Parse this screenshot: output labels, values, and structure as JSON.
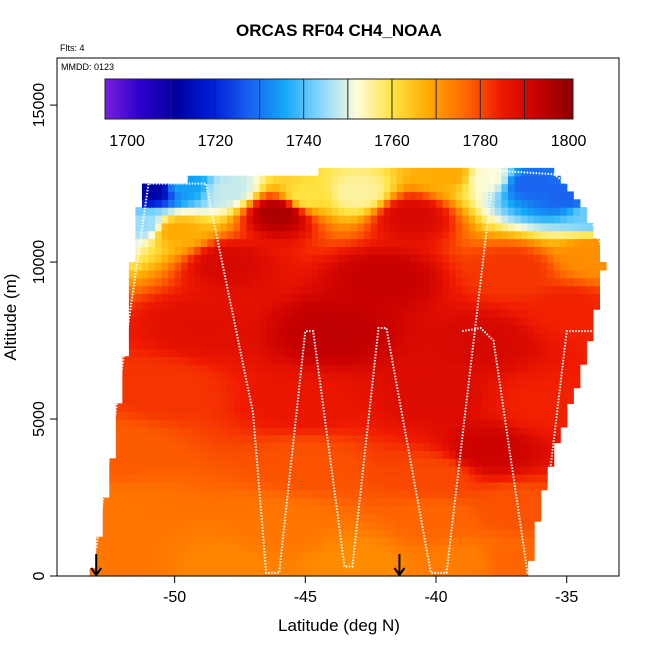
{
  "chart_data": {
    "type": "heatmap",
    "title": "ORCAS RF04 CH4_NOAA",
    "flights_label": "Flts: 4",
    "mmdd_label": "MMDD: 0123",
    "xlabel": "Latitude (deg N)",
    "ylabel": "Altitude (m)",
    "xlim": [
      -54.5,
      -33.0
    ],
    "ylim": [
      0,
      16500
    ],
    "x_ticks": [
      -50,
      -45,
      -40,
      -35
    ],
    "y_ticks": [
      0,
      5000,
      10000,
      15000
    ],
    "colorbar": {
      "range": [
        1695,
        1801
      ],
      "ticks": [
        1700,
        1720,
        1740,
        1760,
        1780,
        1800
      ],
      "colors": [
        "#7a20e0",
        "#2a00c8",
        "#0000a0",
        "#0020d8",
        "#1a60f0",
        "#12a8f8",
        "#8ad8ff",
        "#fefcd8",
        "#ffe240",
        "#ffa800",
        "#ff6a00",
        "#f01a00",
        "#c80000",
        "#8a0000"
      ]
    },
    "coverage": {
      "south_edge": [
        [
          0,
          -53.2
        ],
        [
          1500,
          -52.8
        ],
        [
          3000,
          -52.5
        ],
        [
          5000,
          -52.2
        ],
        [
          8000,
          -51.7
        ],
        [
          10500,
          -51.6
        ],
        [
          12500,
          -51.2
        ]
      ],
      "north_edge": [
        [
          0,
          -36.5
        ],
        [
          1500,
          -36.2
        ],
        [
          4000,
          -35.5
        ],
        [
          6000,
          -34.6
        ],
        [
          8000,
          -34.0
        ],
        [
          10000,
          -33.6
        ],
        [
          11500,
          -34.2
        ],
        [
          13000,
          -35.5
        ]
      ],
      "top_edge": [
        [
          -51.2,
          12500
        ],
        [
          -47,
          12800
        ],
        [
          -42,
          12950
        ],
        [
          -39,
          13100
        ],
        [
          -37,
          13100
        ],
        [
          -35.5,
          13000
        ]
      ]
    },
    "field_points": [
      {
        "lat": -51.0,
        "alt": 12300,
        "ch4": 1712
      },
      {
        "lat": -49.5,
        "alt": 12450,
        "ch4": 1735
      },
      {
        "lat": -48.0,
        "alt": 12300,
        "ch4": 1748
      },
      {
        "lat": -51.2,
        "alt": 11200,
        "ch4": 1745
      },
      {
        "lat": -50.0,
        "alt": 11000,
        "ch4": 1768
      },
      {
        "lat": -45.0,
        "alt": 12100,
        "ch4": 1760
      },
      {
        "lat": -43.0,
        "alt": 12200,
        "ch4": 1755
      },
      {
        "lat": -39.5,
        "alt": 12800,
        "ch4": 1768
      },
      {
        "lat": -38.0,
        "alt": 12700,
        "ch4": 1752
      },
      {
        "lat": -36.5,
        "alt": 12500,
        "ch4": 1728
      },
      {
        "lat": -35.0,
        "alt": 12100,
        "ch4": 1728
      },
      {
        "lat": -34.0,
        "alt": 11500,
        "ch4": 1742
      },
      {
        "lat": -34.0,
        "alt": 10300,
        "ch4": 1772
      },
      {
        "lat": -46.0,
        "alt": 11600,
        "ch4": 1797
      },
      {
        "lat": -41.0,
        "alt": 11500,
        "ch4": 1790
      },
      {
        "lat": -48.0,
        "alt": 10000,
        "ch4": 1790
      },
      {
        "lat": -42.0,
        "alt": 9500,
        "ch4": 1793
      },
      {
        "lat": -37.0,
        "alt": 9800,
        "ch4": 1782
      },
      {
        "lat": -49.0,
        "alt": 8000,
        "ch4": 1788
      },
      {
        "lat": -44.0,
        "alt": 7800,
        "ch4": 1794
      },
      {
        "lat": -38.0,
        "alt": 7500,
        "ch4": 1790
      },
      {
        "lat": -35.0,
        "alt": 8500,
        "ch4": 1784
      },
      {
        "lat": -50.5,
        "alt": 6000,
        "ch4": 1782
      },
      {
        "lat": -45.0,
        "alt": 5500,
        "ch4": 1786
      },
      {
        "lat": -40.0,
        "alt": 5800,
        "ch4": 1789
      },
      {
        "lat": -36.0,
        "alt": 5500,
        "ch4": 1784
      },
      {
        "lat": -38.0,
        "alt": 4000,
        "ch4": 1792
      },
      {
        "lat": -52.0,
        "alt": 4000,
        "ch4": 1778
      },
      {
        "lat": -45.0,
        "alt": 3600,
        "ch4": 1779
      },
      {
        "lat": -40.0,
        "alt": 3200,
        "ch4": 1780
      },
      {
        "lat": -52.0,
        "alt": 2000,
        "ch4": 1775
      },
      {
        "lat": -46.0,
        "alt": 1600,
        "ch4": 1775
      },
      {
        "lat": -40.0,
        "alt": 1800,
        "ch4": 1777
      },
      {
        "lat": -37.0,
        "alt": 2200,
        "ch4": 1779
      },
      {
        "lat": -52.5,
        "alt": 400,
        "ch4": 1775
      },
      {
        "lat": -48.0,
        "alt": 300,
        "ch4": 1773
      },
      {
        "lat": -43.0,
        "alt": 400,
        "ch4": 1772
      },
      {
        "lat": -39.0,
        "alt": 400,
        "ch4": 1774
      },
      {
        "lat": -37.0,
        "alt": 500,
        "ch4": 1777
      }
    ],
    "flight_track": [
      {
        "lat": -53.0,
        "alt": 900
      },
      {
        "lat": -51.0,
        "alt": 12500
      },
      {
        "lat": -48.8,
        "alt": 12500
      },
      {
        "lat": -47.0,
        "alt": 5200
      },
      {
        "lat": -46.5,
        "alt": 100
      },
      {
        "lat": -46.0,
        "alt": 100
      },
      {
        "lat": -45.0,
        "alt": 7800
      },
      {
        "lat": -44.7,
        "alt": 7800
      },
      {
        "lat": -43.5,
        "alt": 300
      },
      {
        "lat": -43.2,
        "alt": 300
      },
      {
        "lat": -42.2,
        "alt": 7900
      },
      {
        "lat": -41.9,
        "alt": 7900
      },
      {
        "lat": -40.2,
        "alt": 100
      },
      {
        "lat": -39.6,
        "alt": 100
      },
      {
        "lat": -37.8,
        "alt": 12900
      },
      {
        "lat": -37.5,
        "alt": 12900
      },
      {
        "lat": -35.5,
        "alt": 12800
      },
      {
        "lat": -35.0,
        "alt": 12500
      }
    ],
    "flight_track_2": [
      {
        "lat": -39.0,
        "alt": 7800
      },
      {
        "lat": -38.3,
        "alt": 7900
      },
      {
        "lat": -37.8,
        "alt": 7500
      },
      {
        "lat": -36.5,
        "alt": 100
      },
      {
        "lat": -36.1,
        "alt": 100
      },
      {
        "lat": -35.0,
        "alt": 7800
      },
      {
        "lat": -33.5,
        "alt": 7800
      },
      {
        "lat": -33.2,
        "alt": 9500
      },
      {
        "lat": -34.0,
        "alt": 11200
      }
    ],
    "markers": [
      {
        "lat": -53.0,
        "label": "arrow"
      },
      {
        "lat": -41.4,
        "label": "arrow"
      }
    ]
  }
}
